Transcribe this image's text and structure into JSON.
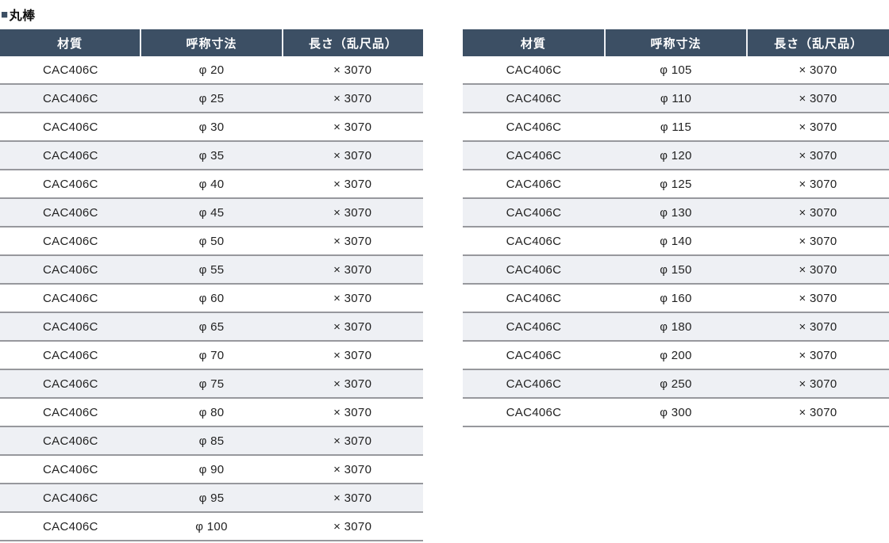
{
  "section": {
    "marker": "■",
    "title": "丸棒"
  },
  "columns": [
    "材質",
    "呼称寸法",
    "長さ（乱尺品）"
  ],
  "colors": {
    "header_bg": "#3c4f64",
    "header_text": "#ffffff",
    "alt_row_bg": "#eef0f4",
    "row_border": "#97989d",
    "title_marker": "#3c4f64"
  },
  "tables": [
    {
      "rows": [
        [
          "CAC406C",
          "φ 20",
          "× 3070"
        ],
        [
          "CAC406C",
          "φ 25",
          "× 3070"
        ],
        [
          "CAC406C",
          "φ 30",
          "× 3070"
        ],
        [
          "CAC406C",
          "φ 35",
          "× 3070"
        ],
        [
          "CAC406C",
          "φ 40",
          "× 3070"
        ],
        [
          "CAC406C",
          "φ 45",
          "× 3070"
        ],
        [
          "CAC406C",
          "φ 50",
          "× 3070"
        ],
        [
          "CAC406C",
          "φ 55",
          "× 3070"
        ],
        [
          "CAC406C",
          "φ 60",
          "× 3070"
        ],
        [
          "CAC406C",
          "φ 65",
          "× 3070"
        ],
        [
          "CAC406C",
          "φ 70",
          "× 3070"
        ],
        [
          "CAC406C",
          "φ 75",
          "× 3070"
        ],
        [
          "CAC406C",
          "φ 80",
          "× 3070"
        ],
        [
          "CAC406C",
          "φ 85",
          "× 3070"
        ],
        [
          "CAC406C",
          "φ 90",
          "× 3070"
        ],
        [
          "CAC406C",
          "φ 95",
          "× 3070"
        ],
        [
          "CAC406C",
          "φ 100",
          "× 3070"
        ]
      ]
    },
    {
      "rows": [
        [
          "CAC406C",
          "φ 105",
          "× 3070"
        ],
        [
          "CAC406C",
          "φ 110",
          "× 3070"
        ],
        [
          "CAC406C",
          "φ 115",
          "× 3070"
        ],
        [
          "CAC406C",
          "φ 120",
          "× 3070"
        ],
        [
          "CAC406C",
          "φ 125",
          "× 3070"
        ],
        [
          "CAC406C",
          "φ 130",
          "× 3070"
        ],
        [
          "CAC406C",
          "φ 140",
          "× 3070"
        ],
        [
          "CAC406C",
          "φ 150",
          "× 3070"
        ],
        [
          "CAC406C",
          "φ 160",
          "× 3070"
        ],
        [
          "CAC406C",
          "φ 180",
          "× 3070"
        ],
        [
          "CAC406C",
          "φ 200",
          "× 3070"
        ],
        [
          "CAC406C",
          "φ 250",
          "× 3070"
        ],
        [
          "CAC406C",
          "φ 300",
          "× 3070"
        ]
      ]
    }
  ]
}
